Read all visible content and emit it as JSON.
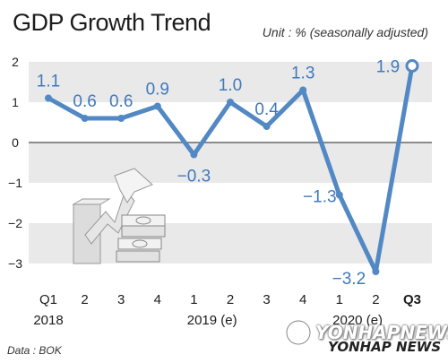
{
  "title": "GDP Growth Trend",
  "unit_note": "Unit : % (seasonally adjusted)",
  "source_note": "Data : BOK",
  "watermark": {
    "main": "YONHAPNEWS",
    "sub": "YONHAP NEWS"
  },
  "colors": {
    "line": "#5288c4",
    "label": "#3f79bd",
    "band": "#e9e9e9",
    "zero_line": "#222222"
  },
  "chart_data": {
    "type": "line",
    "title": "GDP Growth Trend",
    "ylabel": "%",
    "ylim": [
      -3.3,
      2.2
    ],
    "yticks": [
      "2",
      "1",
      "0",
      "−1",
      "−2",
      "−3"
    ],
    "ytick_values": [
      2,
      1,
      0,
      -1,
      -2,
      -3
    ],
    "categories": [
      "Q1",
      "2",
      "3",
      "4",
      "1",
      "2",
      "3",
      "4",
      "1",
      "2",
      "Q3"
    ],
    "year_labels": [
      {
        "label": "2018",
        "index": 0
      },
      {
        "label": "2019 (e)",
        "index": 4.5
      },
      {
        "label": "2020 (e)",
        "index": 8.5
      }
    ],
    "values": [
      1.1,
      0.6,
      0.6,
      0.9,
      -0.3,
      1.0,
      0.4,
      1.3,
      -1.3,
      -3.2,
      1.9
    ],
    "data_labels": [
      "1.1",
      "0.6",
      "0.6",
      "0.9",
      "−0.3",
      "1.0",
      "0.4",
      "1.3",
      "−1.3",
      "−3.2",
      "1.9"
    ],
    "bold_category_index": 10
  }
}
